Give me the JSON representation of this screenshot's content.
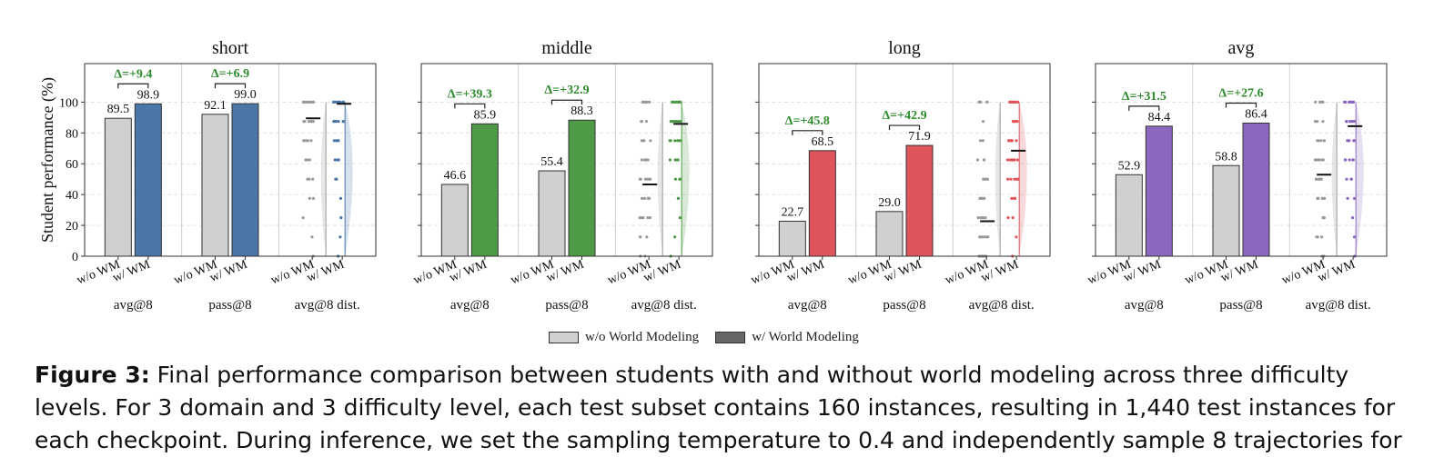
{
  "chart_data": {
    "type": "bar",
    "ylabel": "Student performance (%)",
    "ylim": [
      0,
      125
    ],
    "yticks": [
      "0",
      "20",
      "40",
      "60",
      "80",
      "100"
    ],
    "group_labels": [
      "avg@8",
      "pass@8",
      "avg@8 dist."
    ],
    "bar_labels": [
      "w/o WM",
      "w/ WM"
    ],
    "colors": {
      "without": "#d0d0d0",
      "short": "#4a76a8",
      "middle": "#4e9a47",
      "long": "#e0545b",
      "avg": "#8c67bf",
      "delta": "#2e8b2e"
    },
    "panels": [
      {
        "title": "short",
        "color_key": "short",
        "groups": [
          {
            "label": "avg@8",
            "without": 89.5,
            "with": 98.9,
            "delta": "Δ=+9.4"
          },
          {
            "label": "pass@8",
            "without": 92.1,
            "with": 99.0,
            "delta": "Δ=+6.9"
          }
        ],
        "dist": {
          "without_mean": 89.5,
          "with_mean": 98.9
        }
      },
      {
        "title": "middle",
        "color_key": "middle",
        "groups": [
          {
            "label": "avg@8",
            "without": 46.6,
            "with": 85.9,
            "delta": "Δ=+39.3"
          },
          {
            "label": "pass@8",
            "without": 55.4,
            "with": 88.3,
            "delta": "Δ=+32.9"
          }
        ],
        "dist": {
          "without_mean": 46.6,
          "with_mean": 85.9
        }
      },
      {
        "title": "long",
        "color_key": "long",
        "groups": [
          {
            "label": "avg@8",
            "without": 22.7,
            "with": 68.5,
            "delta": "Δ=+45.8"
          },
          {
            "label": "pass@8",
            "without": 29.0,
            "with": 71.9,
            "delta": "Δ=+42.9"
          }
        ],
        "dist": {
          "without_mean": 22.7,
          "with_mean": 68.5
        }
      },
      {
        "title": "avg",
        "color_key": "avg",
        "groups": [
          {
            "label": "avg@8",
            "without": 52.9,
            "with": 84.4,
            "delta": "Δ=+31.5"
          },
          {
            "label": "pass@8",
            "without": 58.8,
            "with": 86.4,
            "delta": "Δ=+27.6"
          }
        ],
        "dist": {
          "without_mean": 52.9,
          "with_mean": 84.4
        }
      }
    ],
    "legend": [
      "w/o World Modeling",
      "w/ World Modeling"
    ],
    "legend_placement": "bottom-center",
    "legend_colors": [
      "#d0d0d0",
      "#666666"
    ],
    "grid": "horizontal dashed"
  },
  "caption": {
    "label": "Figure 3:",
    "line1": " Final performance comparison between students with and without world modeling across three difficulty",
    "line2": "levels. For 3 domain and 3 difficulty level, each test subset contains 160 instances, resulting in 1,440 test instances for",
    "line3": "each checkpoint. During inference, we set the sampling temperature to 0.4 and independently sample 8 trajectories for"
  }
}
